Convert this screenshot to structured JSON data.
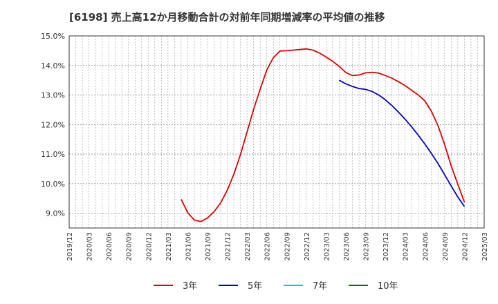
{
  "chart_data": {
    "type": "line",
    "title": "[6198]  売上高12か月移動合計の対前年同期増減率の平均値の推移",
    "xlabel": "",
    "ylabel": "",
    "ylim": [
      8.5,
      15.0
    ],
    "y_ticks": [
      9.0,
      10.0,
      11.0,
      12.0,
      13.0,
      14.0,
      15.0
    ],
    "y_tick_labels": [
      "9.0%",
      "10.0%",
      "11.0%",
      "12.0%",
      "13.0%",
      "14.0%",
      "15.0%"
    ],
    "x_range": [
      "2019/12",
      "2025/03"
    ],
    "x_tick_labels": [
      "2019/12",
      "2020/03",
      "2020/06",
      "2020/09",
      "2020/12",
      "2021/03",
      "2021/06",
      "2021/09",
      "2021/12",
      "2022/03",
      "2022/06",
      "2022/09",
      "2022/12",
      "2023/03",
      "2023/06",
      "2023/09",
      "2023/12",
      "2024/03",
      "2024/06",
      "2024/09",
      "2024/12",
      "2025/03"
    ],
    "grid": true,
    "legend_position": "bottom",
    "series": [
      {
        "name": "3年",
        "color": "#dd0000",
        "x": [
          "2021/05",
          "2021/06",
          "2021/07",
          "2021/08",
          "2021/09",
          "2021/10",
          "2021/11",
          "2021/12",
          "2022/01",
          "2022/02",
          "2022/03",
          "2022/04",
          "2022/05",
          "2022/06",
          "2022/07",
          "2022/08",
          "2022/09",
          "2022/10",
          "2022/11",
          "2022/12",
          "2023/01",
          "2023/02",
          "2023/03",
          "2023/04",
          "2023/05",
          "2023/06",
          "2023/07",
          "2023/08",
          "2023/09",
          "2023/10",
          "2023/11",
          "2023/12",
          "2024/01",
          "2024/02",
          "2024/03",
          "2024/04",
          "2024/05",
          "2024/06",
          "2024/07",
          "2024/08",
          "2024/09",
          "2024/10",
          "2024/11",
          "2024/12"
        ],
        "values": [
          9.47,
          9.02,
          8.77,
          8.72,
          8.84,
          9.05,
          9.35,
          9.78,
          10.32,
          10.98,
          11.74,
          12.52,
          13.2,
          13.85,
          14.26,
          14.49,
          14.5,
          14.52,
          14.54,
          14.56,
          14.52,
          14.42,
          14.29,
          14.14,
          13.97,
          13.76,
          13.66,
          13.68,
          13.75,
          13.77,
          13.74,
          13.66,
          13.57,
          13.45,
          13.32,
          13.16,
          13.0,
          12.8,
          12.45,
          11.96,
          11.32,
          10.6,
          9.98,
          9.38
        ]
      },
      {
        "name": "5年",
        "color": "#0000cc",
        "x": [
          "2023/05",
          "2023/06",
          "2023/07",
          "2023/08",
          "2023/09",
          "2023/10",
          "2023/11",
          "2023/12",
          "2024/01",
          "2024/02",
          "2024/03",
          "2024/04",
          "2024/05",
          "2024/06",
          "2024/07",
          "2024/08",
          "2024/09",
          "2024/10",
          "2024/11",
          "2024/12"
        ],
        "values": [
          13.5,
          13.38,
          13.29,
          13.22,
          13.19,
          13.12,
          13.0,
          12.84,
          12.64,
          12.42,
          12.18,
          11.92,
          11.64,
          11.34,
          11.02,
          10.68,
          10.3,
          9.92,
          9.55,
          9.23
        ]
      },
      {
        "name": "7年",
        "color": "#00ccee",
        "x": [],
        "values": []
      },
      {
        "name": "10年",
        "color": "#007700",
        "x": [],
        "values": []
      }
    ]
  }
}
